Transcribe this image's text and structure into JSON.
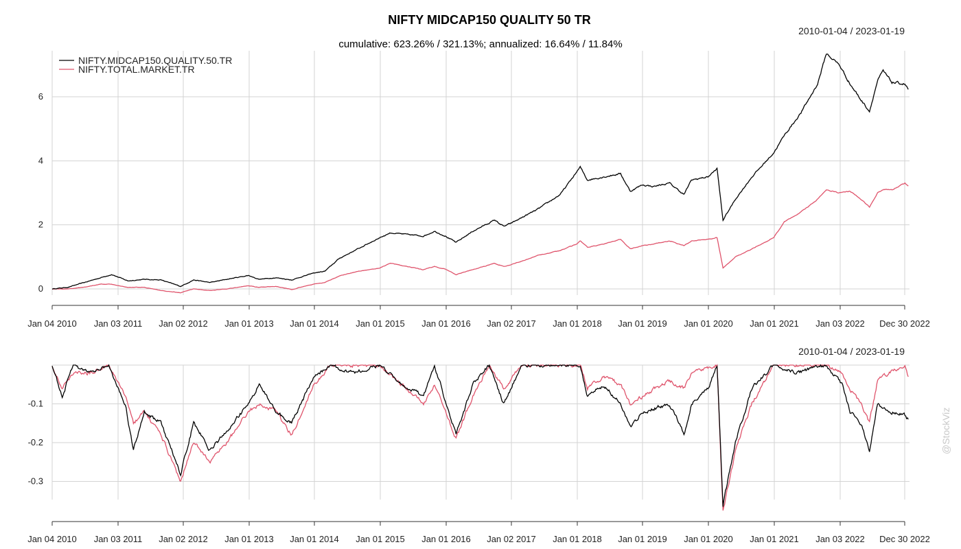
{
  "chart_data": [
    {
      "type": "line",
      "title": "NIFTY MIDCAP150 QUALITY 50 TR",
      "subtitle": "cumulative: 623.26% / 321.13%; annualized: 16.64% / 11.84%",
      "date_range": "2010-01-04 / 2023-01-19",
      "x_tick_labels": [
        "Jan 04 2010",
        "Jan 03 2011",
        "Jan 02 2012",
        "Jan 01 2013",
        "Jan 01 2014",
        "Jan 01 2015",
        "Jan 01 2016",
        "Jan 02 2017",
        "Jan 01 2018",
        "Jan 01 2019",
        "Jan 01 2020",
        "Jan 01 2021",
        "Jan 03 2022",
        "Dec 30 2022"
      ],
      "y_ticks": [
        "0",
        "2",
        "4",
        "6"
      ],
      "ylim": [
        -0.15,
        7.5
      ],
      "grid": true,
      "legend_position": "top-left",
      "series": [
        {
          "name": "NIFTY.MIDCAP150.QUALITY.50.TR",
          "color": "#000000",
          "points": [
            [
              "2010-01-04",
              0.0
            ],
            [
              "2010-04-01",
              0.05
            ],
            [
              "2010-07-01",
              0.2
            ],
            [
              "2010-10-01",
              0.35
            ],
            [
              "2010-12-01",
              0.45
            ],
            [
              "2011-03-01",
              0.25
            ],
            [
              "2011-06-01",
              0.3
            ],
            [
              "2011-09-01",
              0.28
            ],
            [
              "2011-12-20",
              0.08
            ],
            [
              "2012-03-01",
              0.28
            ],
            [
              "2012-06-01",
              0.2
            ],
            [
              "2012-09-01",
              0.3
            ],
            [
              "2012-12-31",
              0.42
            ],
            [
              "2013-03-01",
              0.3
            ],
            [
              "2013-06-01",
              0.35
            ],
            [
              "2013-08-28",
              0.28
            ],
            [
              "2013-12-31",
              0.5
            ],
            [
              "2014-03-01",
              0.55
            ],
            [
              "2014-05-20",
              0.95
            ],
            [
              "2014-09-01",
              1.25
            ],
            [
              "2014-12-31",
              1.6
            ],
            [
              "2015-03-01",
              1.75
            ],
            [
              "2015-06-01",
              1.7
            ],
            [
              "2015-09-01",
              1.65
            ],
            [
              "2015-11-01",
              1.8
            ],
            [
              "2015-12-31",
              1.65
            ],
            [
              "2016-02-29",
              1.45
            ],
            [
              "2016-06-01",
              1.8
            ],
            [
              "2016-10-01",
              2.15
            ],
            [
              "2016-11-20",
              1.95
            ],
            [
              "2016-12-31",
              2.05
            ],
            [
              "2017-06-01",
              2.5
            ],
            [
              "2017-10-01",
              2.95
            ],
            [
              "2017-12-31",
              3.65
            ],
            [
              "2018-01-20",
              3.8
            ],
            [
              "2018-03-01",
              3.4
            ],
            [
              "2018-06-01",
              3.5
            ],
            [
              "2018-09-01",
              3.6
            ],
            [
              "2018-10-25",
              3.05
            ],
            [
              "2018-12-31",
              3.25
            ],
            [
              "2019-03-01",
              3.2
            ],
            [
              "2019-06-01",
              3.3
            ],
            [
              "2019-08-20",
              2.95
            ],
            [
              "2019-10-01",
              3.4
            ],
            [
              "2019-12-31",
              3.5
            ],
            [
              "2020-02-20",
              3.75
            ],
            [
              "2020-03-24",
              2.15
            ],
            [
              "2020-06-01",
              2.8
            ],
            [
              "2020-09-01",
              3.5
            ],
            [
              "2020-12-31",
              4.25
            ],
            [
              "2021-03-01",
              4.8
            ],
            [
              "2021-06-01",
              5.5
            ],
            [
              "2021-09-01",
              6.4
            ],
            [
              "2021-10-20",
              7.35
            ],
            [
              "2021-12-31",
              7.0
            ],
            [
              "2022-03-01",
              6.4
            ],
            [
              "2022-05-01",
              5.9
            ],
            [
              "2022-06-17",
              5.55
            ],
            [
              "2022-08-01",
              6.5
            ],
            [
              "2022-09-01",
              6.8
            ],
            [
              "2022-10-20",
              6.45
            ],
            [
              "2022-12-31",
              6.4
            ],
            [
              "2023-01-19",
              6.23
            ]
          ]
        },
        {
          "name": "NIFTY.TOTAL.MARKET.TR",
          "color": "#df536b",
          "points": [
            [
              "2010-01-04",
              0.0
            ],
            [
              "2010-04-01",
              0.0
            ],
            [
              "2010-07-01",
              0.05
            ],
            [
              "2010-10-01",
              0.15
            ],
            [
              "2010-12-01",
              0.15
            ],
            [
              "2011-03-01",
              0.05
            ],
            [
              "2011-06-01",
              0.05
            ],
            [
              "2011-09-01",
              -0.05
            ],
            [
              "2011-12-20",
              -0.12
            ],
            [
              "2012-03-01",
              0.0
            ],
            [
              "2012-06-01",
              -0.05
            ],
            [
              "2012-09-01",
              0.0
            ],
            [
              "2012-12-31",
              0.1
            ],
            [
              "2013-03-01",
              0.05
            ],
            [
              "2013-06-01",
              0.08
            ],
            [
              "2013-08-28",
              -0.02
            ],
            [
              "2013-12-31",
              0.15
            ],
            [
              "2014-03-01",
              0.2
            ],
            [
              "2014-05-20",
              0.4
            ],
            [
              "2014-09-01",
              0.55
            ],
            [
              "2014-12-31",
              0.65
            ],
            [
              "2015-03-01",
              0.8
            ],
            [
              "2015-06-01",
              0.7
            ],
            [
              "2015-09-01",
              0.6
            ],
            [
              "2015-11-01",
              0.7
            ],
            [
              "2015-12-31",
              0.62
            ],
            [
              "2016-02-29",
              0.45
            ],
            [
              "2016-06-01",
              0.6
            ],
            [
              "2016-10-01",
              0.8
            ],
            [
              "2016-11-20",
              0.7
            ],
            [
              "2016-12-31",
              0.75
            ],
            [
              "2017-06-01",
              1.05
            ],
            [
              "2017-10-01",
              1.2
            ],
            [
              "2017-12-31",
              1.4
            ],
            [
              "2018-01-20",
              1.5
            ],
            [
              "2018-03-01",
              1.3
            ],
            [
              "2018-06-01",
              1.4
            ],
            [
              "2018-09-01",
              1.55
            ],
            [
              "2018-10-25",
              1.25
            ],
            [
              "2018-12-31",
              1.35
            ],
            [
              "2019-03-01",
              1.4
            ],
            [
              "2019-06-01",
              1.5
            ],
            [
              "2019-08-20",
              1.35
            ],
            [
              "2019-10-01",
              1.5
            ],
            [
              "2019-12-31",
              1.55
            ],
            [
              "2020-02-20",
              1.6
            ],
            [
              "2020-03-24",
              0.65
            ],
            [
              "2020-06-01",
              1.0
            ],
            [
              "2020-09-01",
              1.25
            ],
            [
              "2020-12-31",
              1.6
            ],
            [
              "2021-03-01",
              2.1
            ],
            [
              "2021-06-01",
              2.4
            ],
            [
              "2021-09-01",
              2.8
            ],
            [
              "2021-10-20",
              3.1
            ],
            [
              "2021-12-31",
              3.0
            ],
            [
              "2022-03-01",
              3.05
            ],
            [
              "2022-05-01",
              2.8
            ],
            [
              "2022-06-17",
              2.55
            ],
            [
              "2022-08-01",
              3.0
            ],
            [
              "2022-09-01",
              3.1
            ],
            [
              "2022-10-20",
              3.1
            ],
            [
              "2022-12-31",
              3.3
            ],
            [
              "2023-01-19",
              3.21
            ]
          ]
        }
      ]
    },
    {
      "type": "line",
      "date_range": "2010-01-04 / 2023-01-19",
      "x_tick_labels": [
        "Jan 04 2010",
        "Jan 03 2011",
        "Jan 02 2012",
        "Jan 01 2013",
        "Jan 01 2014",
        "Jan 01 2015",
        "Jan 01 2016",
        "Jan 02 2017",
        "Jan 01 2018",
        "Jan 01 2019",
        "Jan 01 2020",
        "Jan 01 2021",
        "Jan 03 2022",
        "Dec 30 2022"
      ],
      "y_ticks": [
        "-0.1",
        "-0.2",
        "-0.3"
      ],
      "ylim": [
        -0.385,
        0
      ],
      "grid": true,
      "series": [
        {
          "name": "NIFTY.MIDCAP150.QUALITY.50.TR",
          "color": "#000000",
          "points": [
            [
              "2010-01-04",
              0.0
            ],
            [
              "2010-03-01",
              -0.08
            ],
            [
              "2010-05-01",
              0.0
            ],
            [
              "2010-08-01",
              -0.02
            ],
            [
              "2010-11-15",
              0.0
            ],
            [
              "2011-02-15",
              -0.1
            ],
            [
              "2011-04-01",
              -0.22
            ],
            [
              "2011-06-01",
              -0.12
            ],
            [
              "2011-09-01",
              -0.15
            ],
            [
              "2011-12-20",
              -0.28
            ],
            [
              "2012-03-01",
              -0.15
            ],
            [
              "2012-06-01",
              -0.22
            ],
            [
              "2012-09-01",
              -0.17
            ],
            [
              "2012-12-31",
              -0.1
            ],
            [
              "2013-03-01",
              -0.05
            ],
            [
              "2013-06-01",
              -0.12
            ],
            [
              "2013-08-28",
              -0.15
            ],
            [
              "2013-12-31",
              -0.03
            ],
            [
              "2014-04-01",
              0.0
            ],
            [
              "2014-08-01",
              -0.02
            ],
            [
              "2014-12-31",
              0.0
            ],
            [
              "2015-05-01",
              -0.05
            ],
            [
              "2015-09-01",
              -0.08
            ],
            [
              "2015-11-01",
              0.0
            ],
            [
              "2016-02-29",
              -0.18
            ],
            [
              "2016-06-01",
              -0.05
            ],
            [
              "2016-09-01",
              0.0
            ],
            [
              "2016-11-20",
              -0.1
            ],
            [
              "2017-03-01",
              0.0
            ],
            [
              "2017-08-01",
              0.0
            ],
            [
              "2018-01-20",
              0.0
            ],
            [
              "2018-03-01",
              -0.08
            ],
            [
              "2018-06-01",
              -0.05
            ],
            [
              "2018-09-01",
              -0.1
            ],
            [
              "2018-10-25",
              -0.16
            ],
            [
              "2019-01-01",
              -0.12
            ],
            [
              "2019-06-01",
              -0.1
            ],
            [
              "2019-08-20",
              -0.18
            ],
            [
              "2019-10-01",
              -0.1
            ],
            [
              "2019-12-31",
              -0.06
            ],
            [
              "2020-02-20",
              0.0
            ],
            [
              "2020-03-24",
              -0.36
            ],
            [
              "2020-06-01",
              -0.2
            ],
            [
              "2020-09-01",
              -0.06
            ],
            [
              "2020-12-31",
              0.0
            ],
            [
              "2021-05-01",
              -0.02
            ],
            [
              "2021-10-20",
              0.0
            ],
            [
              "2022-01-15",
              -0.05
            ],
            [
              "2022-03-01",
              -0.12
            ],
            [
              "2022-05-01",
              -0.15
            ],
            [
              "2022-06-17",
              -0.22
            ],
            [
              "2022-08-01",
              -0.1
            ],
            [
              "2022-10-01",
              -0.12
            ],
            [
              "2022-12-31",
              -0.13
            ],
            [
              "2023-01-19",
              -0.14
            ]
          ]
        },
        {
          "name": "NIFTY.TOTAL.MARKET.TR",
          "color": "#df536b",
          "points": [
            [
              "2010-01-04",
              0.0
            ],
            [
              "2010-03-01",
              -0.06
            ],
            [
              "2010-05-01",
              -0.02
            ],
            [
              "2010-08-01",
              -0.02
            ],
            [
              "2010-11-15",
              0.0
            ],
            [
              "2011-02-15",
              -0.08
            ],
            [
              "2011-04-01",
              -0.15
            ],
            [
              "2011-06-01",
              -0.12
            ],
            [
              "2011-09-01",
              -0.18
            ],
            [
              "2011-12-20",
              -0.3
            ],
            [
              "2012-03-01",
              -0.2
            ],
            [
              "2012-06-01",
              -0.25
            ],
            [
              "2012-09-01",
              -0.2
            ],
            [
              "2012-12-31",
              -0.12
            ],
            [
              "2013-03-01",
              -0.1
            ],
            [
              "2013-06-01",
              -0.12
            ],
            [
              "2013-08-28",
              -0.18
            ],
            [
              "2013-12-31",
              -0.05
            ],
            [
              "2014-04-01",
              0.0
            ],
            [
              "2014-08-01",
              0.0
            ],
            [
              "2014-12-31",
              0.0
            ],
            [
              "2015-05-01",
              -0.05
            ],
            [
              "2015-09-01",
              -0.1
            ],
            [
              "2015-11-01",
              -0.05
            ],
            [
              "2016-02-29",
              -0.19
            ],
            [
              "2016-06-01",
              -0.08
            ],
            [
              "2016-09-01",
              0.0
            ],
            [
              "2016-11-20",
              -0.06
            ],
            [
              "2017-03-01",
              0.0
            ],
            [
              "2017-08-01",
              0.0
            ],
            [
              "2018-01-20",
              0.0
            ],
            [
              "2018-03-01",
              -0.06
            ],
            [
              "2018-06-01",
              -0.03
            ],
            [
              "2018-09-01",
              -0.05
            ],
            [
              "2018-10-25",
              -0.1
            ],
            [
              "2019-01-01",
              -0.08
            ],
            [
              "2019-06-01",
              -0.04
            ],
            [
              "2019-08-20",
              -0.06
            ],
            [
              "2019-10-01",
              -0.02
            ],
            [
              "2019-12-31",
              -0.01
            ],
            [
              "2020-02-20",
              0.0
            ],
            [
              "2020-03-24",
              -0.38
            ],
            [
              "2020-06-01",
              -0.22
            ],
            [
              "2020-09-01",
              -0.1
            ],
            [
              "2020-12-31",
              0.0
            ],
            [
              "2021-05-01",
              0.0
            ],
            [
              "2021-10-20",
              0.0
            ],
            [
              "2022-01-15",
              -0.02
            ],
            [
              "2022-03-01",
              -0.06
            ],
            [
              "2022-05-01",
              -0.1
            ],
            [
              "2022-06-17",
              -0.15
            ],
            [
              "2022-08-01",
              -0.04
            ],
            [
              "2022-10-01",
              -0.02
            ],
            [
              "2022-12-31",
              0.0
            ],
            [
              "2023-01-19",
              -0.03
            ]
          ]
        }
      ]
    }
  ],
  "watermark": "@StockViz"
}
